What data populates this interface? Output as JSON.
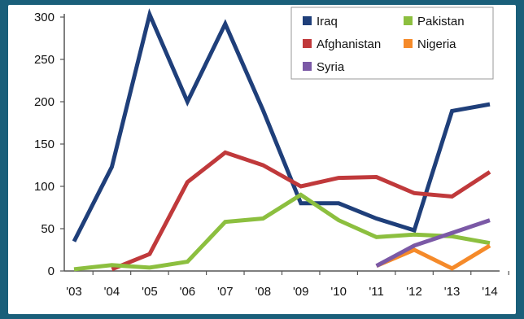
{
  "chart_data": {
    "type": "line",
    "title": "",
    "xlabel": "",
    "ylabel": "",
    "categories": [
      "'03",
      "'04",
      "'05",
      "'06",
      "'07",
      "'08",
      "'09",
      "'10",
      "'11",
      "'12",
      "'13",
      "'14"
    ],
    "ylim": [
      0,
      300
    ],
    "yticks": [
      0,
      50,
      100,
      150,
      200,
      250,
      300
    ],
    "grid": false,
    "legend_position": "top-right",
    "series": [
      {
        "name": "Iraq",
        "color": "#1f3f7a",
        "values": [
          35,
          123,
          303,
          200,
          292,
          190,
          80,
          80,
          62,
          48,
          189,
          197
        ]
      },
      {
        "name": "Afghanistan",
        "color": "#c0393b",
        "values": [
          null,
          2,
          20,
          105,
          140,
          125,
          100,
          110,
          111,
          92,
          88,
          117
        ]
      },
      {
        "name": "Pakistan",
        "color": "#8cbf3f",
        "values": [
          2,
          7,
          4,
          11,
          58,
          62,
          90,
          60,
          40,
          43,
          41,
          33
        ]
      },
      {
        "name": "Nigeria",
        "color": "#f58a2a",
        "values": [
          null,
          null,
          null,
          null,
          null,
          null,
          null,
          null,
          6,
          25,
          3,
          30
        ]
      },
      {
        "name": "Syria",
        "color": "#7b59a6",
        "values": [
          null,
          null,
          null,
          null,
          null,
          null,
          null,
          null,
          6,
          30,
          45,
          60
        ]
      }
    ]
  }
}
